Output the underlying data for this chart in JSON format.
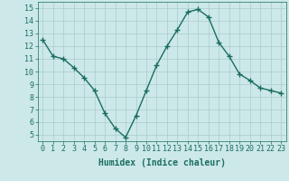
{
  "x": [
    0,
    1,
    2,
    3,
    4,
    5,
    6,
    7,
    8,
    9,
    10,
    11,
    12,
    13,
    14,
    15,
    16,
    17,
    18,
    19,
    20,
    21,
    22,
    23
  ],
  "y": [
    12.5,
    11.2,
    11.0,
    10.3,
    9.5,
    8.5,
    6.7,
    5.5,
    4.8,
    6.5,
    8.5,
    10.5,
    12.0,
    13.3,
    14.7,
    14.9,
    14.3,
    12.3,
    11.2,
    9.8,
    9.3,
    8.7,
    8.5,
    8.3
  ],
  "line_color": "#1a6e5e",
  "marker": "+",
  "marker_size": 4,
  "bg_color": "#cce8e8",
  "grid_color": "#aacccc",
  "xlabel": "Humidex (Indice chaleur)",
  "ylim": [
    4.5,
    15.5
  ],
  "xlim": [
    -0.5,
    23.5
  ],
  "yticks": [
    5,
    6,
    7,
    8,
    9,
    10,
    11,
    12,
    13,
    14,
    15
  ],
  "xticks": [
    0,
    1,
    2,
    3,
    4,
    5,
    6,
    7,
    8,
    9,
    10,
    11,
    12,
    13,
    14,
    15,
    16,
    17,
    18,
    19,
    20,
    21,
    22,
    23
  ],
  "tick_label_fontsize": 6,
  "xlabel_fontsize": 7,
  "line_width": 1.0,
  "marker_color": "#1a6e5e"
}
